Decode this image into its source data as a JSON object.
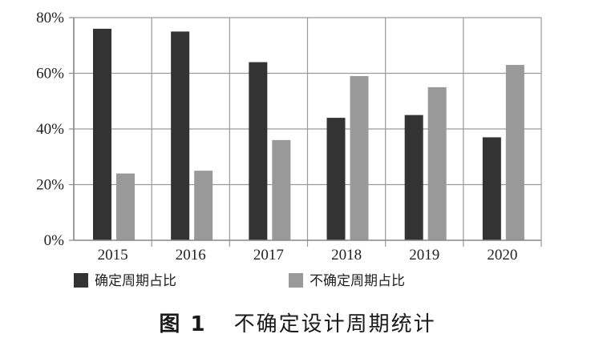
{
  "figure": {
    "number": "图 1",
    "title": "不确定设计周期统计"
  },
  "colors": {
    "series_1": "#333333",
    "series_2": "#999999",
    "grid": "#9a9a9a",
    "axis": "#888888"
  },
  "chart_data": {
    "type": "bar",
    "categories": [
      "2015",
      "2016",
      "2017",
      "2018",
      "2019",
      "2020"
    ],
    "series": [
      {
        "name": "确定周期占比",
        "values": [
          76,
          75,
          64,
          44,
          45,
          37
        ]
      },
      {
        "name": "不确定周期占比",
        "values": [
          24,
          25,
          36,
          59,
          55,
          63
        ]
      }
    ],
    "y_ticks": [
      "0%",
      "20%",
      "40%",
      "60%",
      "80%"
    ],
    "ylim": [
      0,
      80
    ],
    "y_unit": "%",
    "grid": true,
    "legend_position": "bottom",
    "title": "",
    "xlabel": "",
    "ylabel": ""
  }
}
